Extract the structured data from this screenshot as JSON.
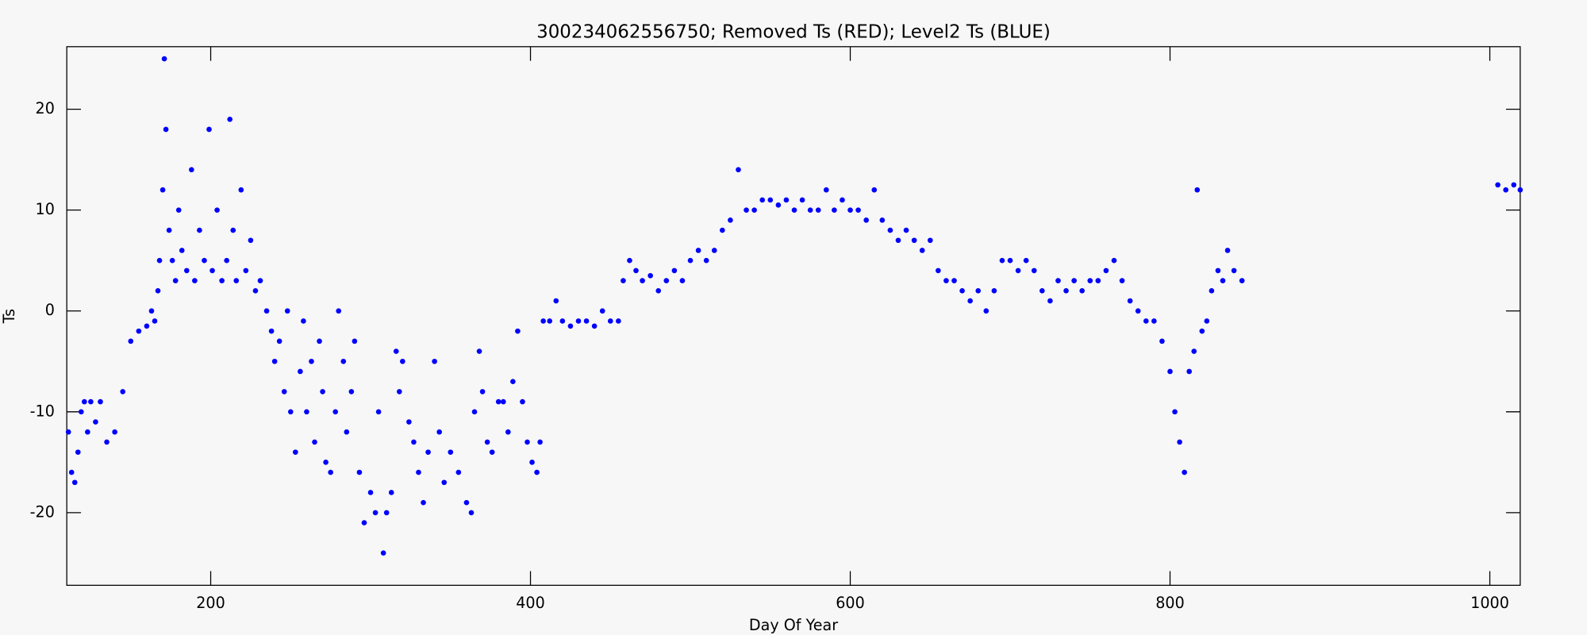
{
  "chart_data": {
    "type": "scatter",
    "title": "300234062556750; Removed Ts (RED); Level2 Ts (BLUE)",
    "x_label": "Day Of Year",
    "y_label": "Ts",
    "xlim": [
      110,
      1019
    ],
    "ylim": [
      -27.2,
      26.2
    ],
    "xticks": [
      200,
      400,
      600,
      800,
      1000
    ],
    "yticks": [
      -20,
      -10,
      0,
      10,
      20
    ],
    "series": [
      {
        "color": "#0000ff",
        "x": [
          111,
          113,
          115,
          117,
          119,
          121,
          123,
          125,
          128,
          131,
          135,
          140,
          145,
          150,
          155,
          160,
          163,
          165,
          167,
          168,
          170,
          171,
          172,
          174,
          176,
          178,
          180,
          182,
          185,
          188,
          190,
          193,
          196,
          199,
          201,
          204,
          207,
          210,
          212,
          214,
          216,
          219,
          222,
          225,
          228,
          231,
          235,
          238,
          240,
          243,
          246,
          248,
          250,
          253,
          256,
          258,
          260,
          263,
          265,
          268,
          270,
          272,
          275,
          278,
          280,
          283,
          285,
          288,
          290,
          293,
          296,
          300,
          303,
          305,
          308,
          310,
          313,
          316,
          318,
          320,
          324,
          327,
          330,
          333,
          336,
          340,
          343,
          346,
          350,
          355,
          360,
          363,
          365,
          368,
          370,
          373,
          376,
          380,
          383,
          386,
          389,
          392,
          395,
          398,
          401,
          404,
          406,
          408,
          412,
          416,
          420,
          425,
          430,
          435,
          440,
          445,
          450,
          455,
          458,
          462,
          466,
          470,
          475,
          480,
          485,
          490,
          495,
          500,
          505,
          510,
          515,
          520,
          525,
          530,
          535,
          540,
          545,
          550,
          555,
          560,
          565,
          570,
          575,
          580,
          585,
          590,
          595,
          600,
          605,
          610,
          615,
          620,
          625,
          630,
          635,
          640,
          645,
          650,
          655,
          660,
          665,
          670,
          675,
          680,
          685,
          690,
          695,
          700,
          705,
          710,
          715,
          720,
          725,
          730,
          735,
          740,
          745,
          750,
          755,
          760,
          765,
          770,
          775,
          780,
          785,
          790,
          795,
          800,
          803,
          806,
          809,
          812,
          815,
          817,
          820,
          823,
          826,
          830,
          833,
          836,
          840,
          845,
          1005,
          1010,
          1015,
          1019
        ],
        "values": [
          -12,
          -16,
          -17,
          -14,
          -10,
          -9,
          -12,
          -9,
          -11,
          -9,
          -13,
          -12,
          -8,
          -3,
          -2,
          -1.5,
          0,
          -1,
          2,
          5,
          12,
          25,
          18,
          8,
          5,
          3,
          10,
          6,
          4,
          14,
          3,
          8,
          5,
          18,
          4,
          10,
          3,
          5,
          19,
          8,
          3,
          12,
          4,
          7,
          2,
          3,
          0,
          -2,
          -5,
          -3,
          -8,
          0,
          -10,
          -14,
          -6,
          -1,
          -10,
          -5,
          -13,
          -3,
          -8,
          -15,
          -16,
          -10,
          0,
          -5,
          -12,
          -8,
          -3,
          -16,
          -21,
          -18,
          -20,
          -10,
          -24,
          -20,
          -18,
          -4,
          -8,
          -5,
          -11,
          -13,
          -16,
          -19,
          -14,
          -5,
          -12,
          -17,
          -14,
          -16,
          -19,
          -20,
          -10,
          -4,
          -8,
          -13,
          -14,
          -9,
          -9,
          -12,
          -7,
          -2,
          -9,
          -13,
          -15,
          -16,
          -13,
          -1,
          -1,
          1,
          -1,
          -1.5,
          -1,
          -1,
          -1.5,
          0,
          -1,
          -1,
          3,
          5,
          4,
          3,
          3.5,
          2,
          3,
          4,
          3,
          5,
          6,
          5,
          6,
          8,
          9,
          14,
          10,
          10,
          11,
          11,
          10.5,
          11,
          10,
          11,
          10,
          10,
          12,
          10,
          11,
          10,
          10,
          9,
          12,
          9,
          8,
          7,
          8,
          7,
          6,
          7,
          4,
          3,
          3,
          2,
          1,
          2,
          0,
          2,
          5,
          5,
          4,
          5,
          4,
          2,
          1,
          3,
          2,
          3,
          2,
          3,
          3,
          4,
          5,
          3,
          1,
          0,
          -1,
          -1,
          -3,
          -6,
          -10,
          -13,
          -16,
          -6,
          -4,
          12,
          -2,
          -1,
          2,
          4,
          3,
          6,
          4,
          3,
          12.5,
          12,
          12.5,
          12
        ]
      }
    ]
  }
}
